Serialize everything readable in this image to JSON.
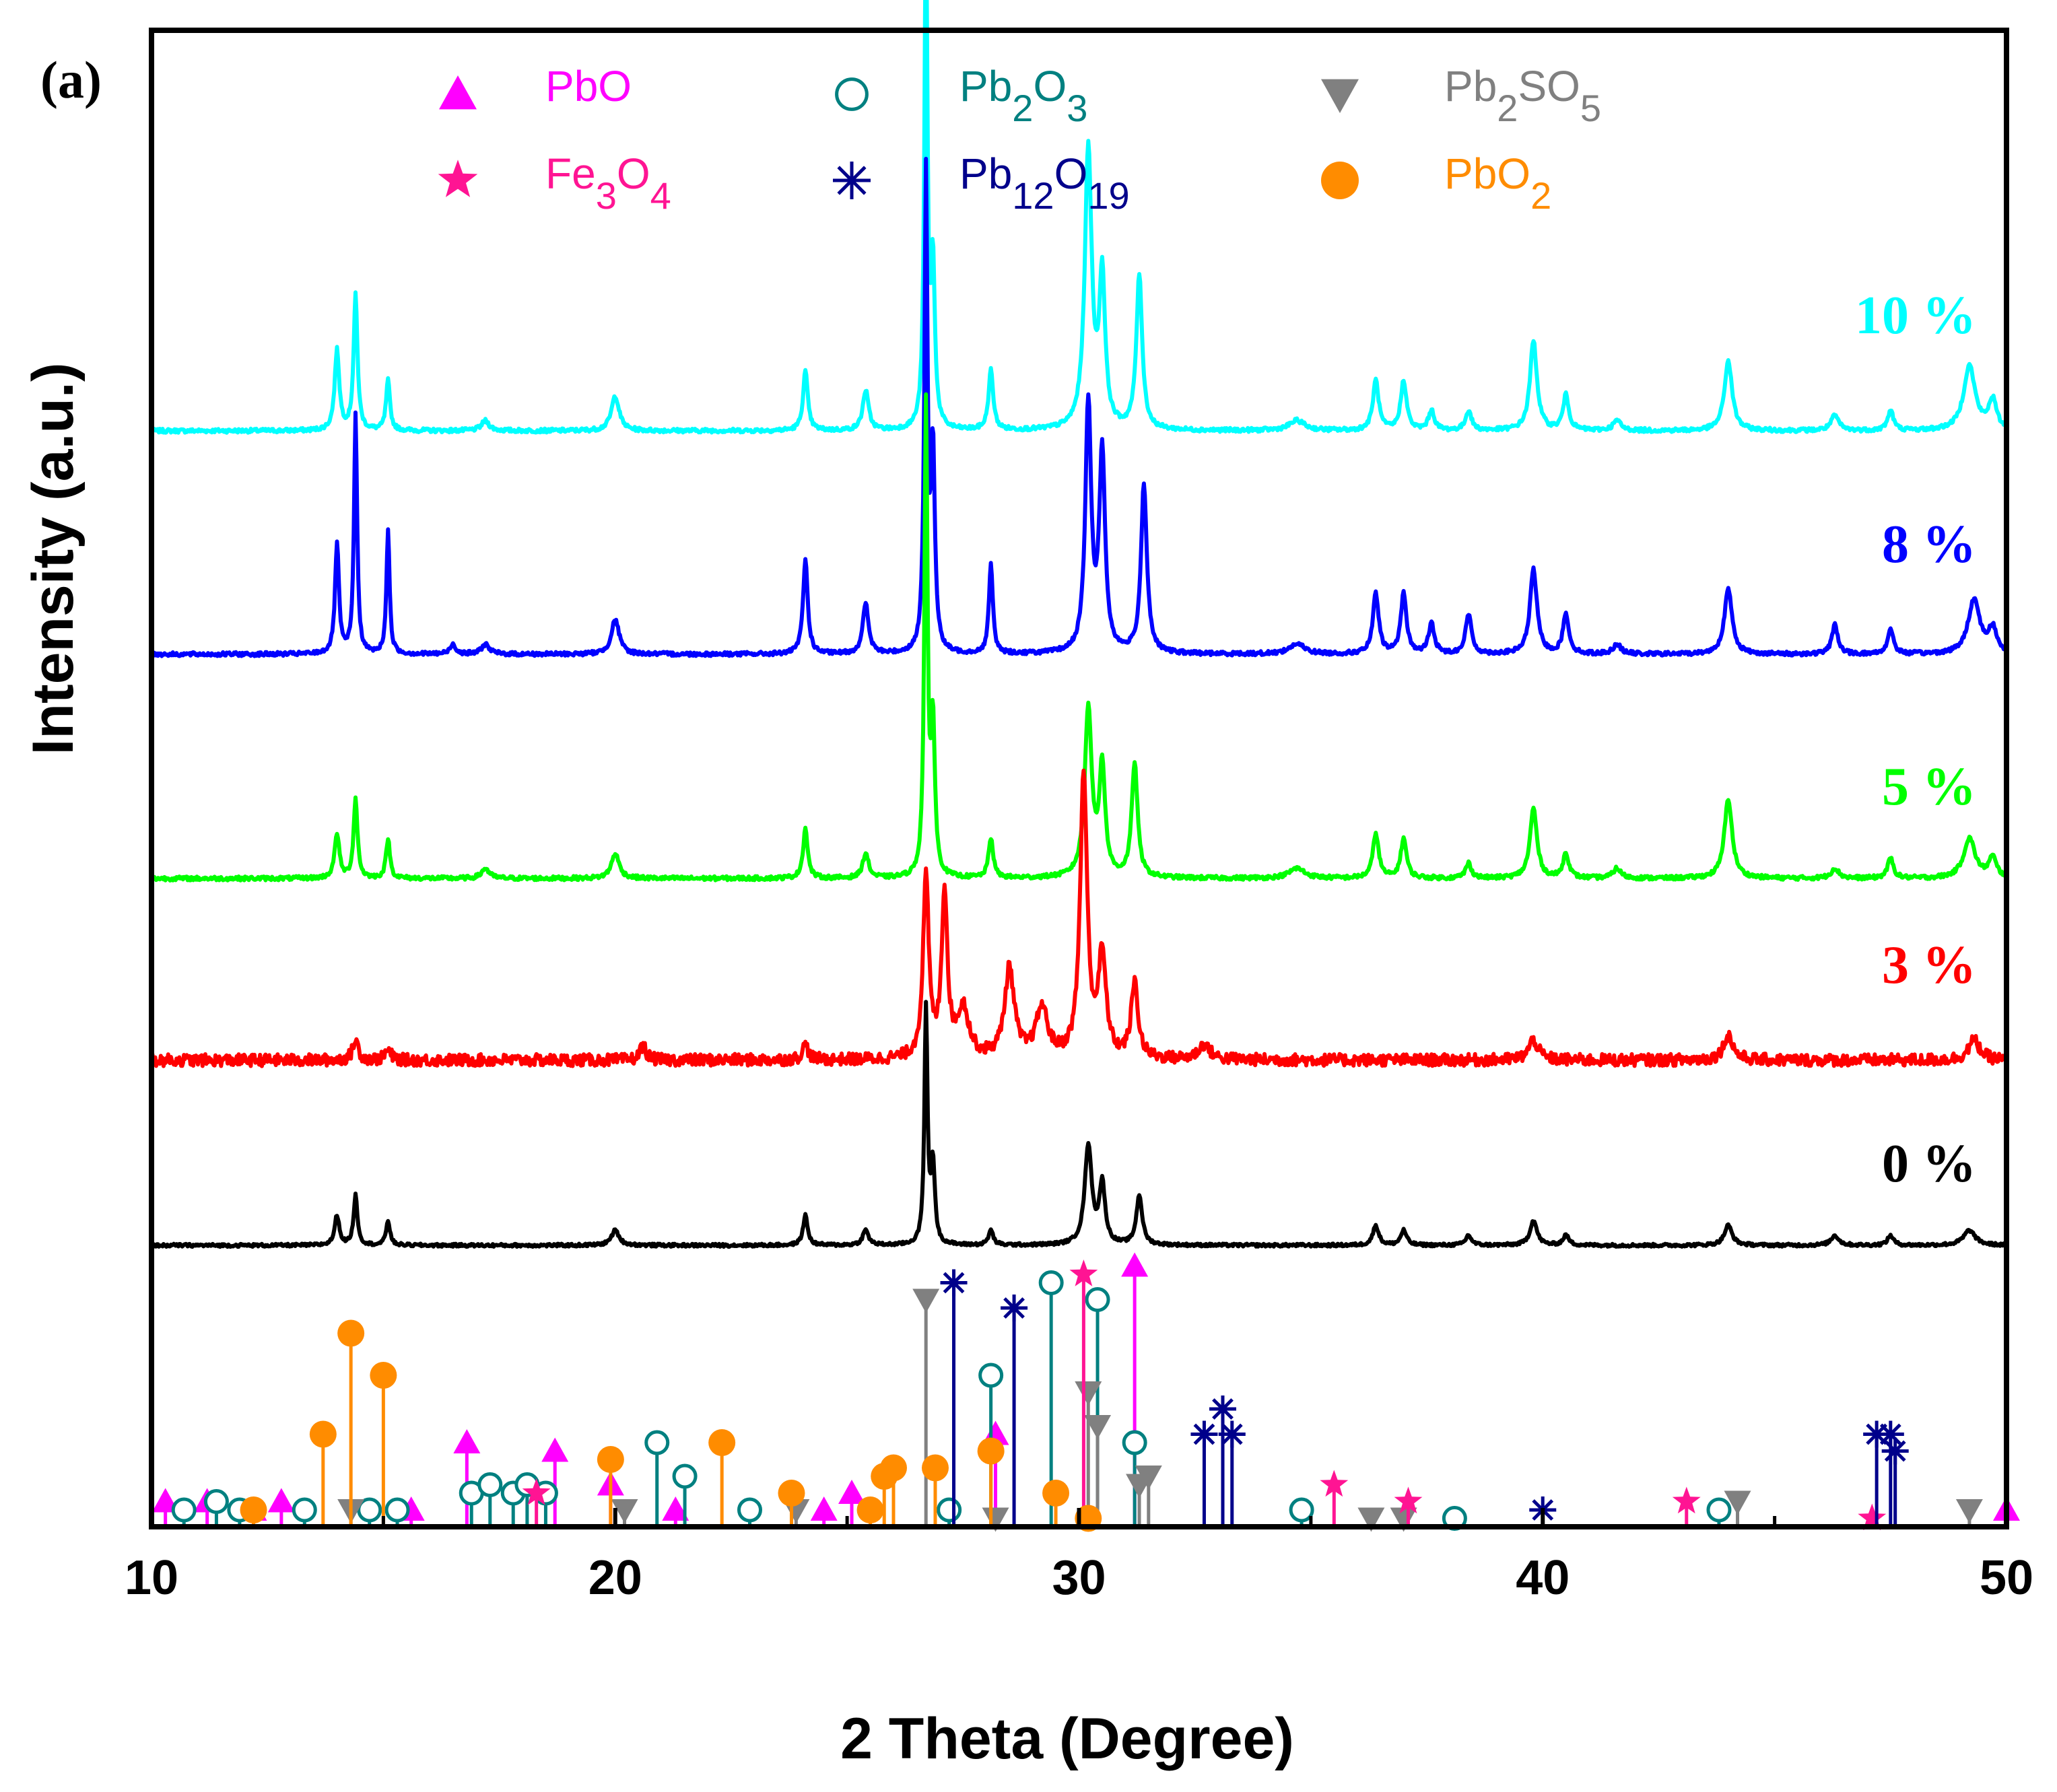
{
  "panel_label": "(a)",
  "chart_data": {
    "type": "line",
    "xlabel": "2 Theta (Degree)",
    "ylabel": "Intensity (a.u.)",
    "xlim": [
      10,
      50
    ],
    "xticks": [
      10,
      20,
      30,
      40,
      50
    ],
    "y_ticks_visible": false,
    "grid": false,
    "legend_position": "top",
    "legend": [
      {
        "key": "PbO",
        "base": "PbO",
        "sub": "",
        "marker": "triangle",
        "color": "#ff00ff"
      },
      {
        "key": "Pb2O3",
        "base": "Pb",
        "sub": "2",
        "base2": "O",
        "sub2": "3",
        "marker": "open-circle",
        "color": "#008080"
      },
      {
        "key": "Pb2SO5",
        "base": "Pb",
        "sub": "2",
        "base2": "SO",
        "sub2": "5",
        "marker": "inverted-triangle",
        "color": "#808080"
      },
      {
        "key": "Fe3O4",
        "base": "Fe",
        "sub": "3",
        "base2": "O",
        "sub2": "4",
        "marker": "star",
        "color": "#ff1493"
      },
      {
        "key": "Pb12O19",
        "base": "Pb",
        "sub": "12",
        "base2": "O",
        "sub2": "19",
        "marker": "asterisk",
        "color": "#00008b"
      },
      {
        "key": "PbO2",
        "base": "PbO",
        "sub": "2",
        "marker": "filled-circle",
        "color": "#ff8c00"
      }
    ],
    "series": [
      {
        "name": "10 %",
        "color": "#00ffff",
        "noise": 0.004,
        "peaks": [
          [
            14.0,
            0.16,
            0.12
          ],
          [
            14.4,
            0.27,
            0.1
          ],
          [
            15.1,
            0.1,
            0.1
          ],
          [
            17.2,
            0.02,
            0.2
          ],
          [
            20.0,
            0.07,
            0.2
          ],
          [
            24.1,
            0.12,
            0.12
          ],
          [
            25.4,
            0.08,
            0.15
          ],
          [
            26.7,
            1.0,
            0.08
          ],
          [
            26.85,
            0.32,
            0.1
          ],
          [
            28.1,
            0.12,
            0.12
          ],
          [
            30.2,
            0.56,
            0.18
          ],
          [
            30.5,
            0.3,
            0.15
          ],
          [
            31.3,
            0.31,
            0.15
          ],
          [
            34.7,
            0.02,
            0.4
          ],
          [
            36.4,
            0.1,
            0.15
          ],
          [
            37.0,
            0.1,
            0.15
          ],
          [
            37.6,
            0.04,
            0.15
          ],
          [
            38.4,
            0.04,
            0.15
          ],
          [
            39.8,
            0.18,
            0.18
          ],
          [
            40.5,
            0.07,
            0.15
          ],
          [
            41.6,
            0.02,
            0.2
          ],
          [
            44.0,
            0.14,
            0.2
          ],
          [
            46.3,
            0.03,
            0.2
          ],
          [
            47.5,
            0.04,
            0.15
          ],
          [
            49.2,
            0.13,
            0.3
          ],
          [
            49.7,
            0.06,
            0.2
          ]
        ]
      },
      {
        "name": "8 %",
        "color": "#0000ff",
        "noise": 0.004,
        "peaks": [
          [
            14.0,
            0.22,
            0.1
          ],
          [
            14.4,
            0.48,
            0.08
          ],
          [
            15.1,
            0.25,
            0.08
          ],
          [
            16.5,
            0.02,
            0.15
          ],
          [
            17.2,
            0.02,
            0.2
          ],
          [
            20.0,
            0.07,
            0.2
          ],
          [
            24.1,
            0.19,
            0.12
          ],
          [
            25.4,
            0.1,
            0.15
          ],
          [
            26.7,
            0.95,
            0.08
          ],
          [
            26.85,
            0.4,
            0.1
          ],
          [
            28.1,
            0.18,
            0.1
          ],
          [
            30.2,
            0.5,
            0.15
          ],
          [
            30.5,
            0.4,
            0.15
          ],
          [
            31.4,
            0.34,
            0.15
          ],
          [
            34.7,
            0.02,
            0.4
          ],
          [
            36.4,
            0.12,
            0.15
          ],
          [
            37.0,
            0.12,
            0.15
          ],
          [
            37.6,
            0.06,
            0.15
          ],
          [
            38.4,
            0.08,
            0.15
          ],
          [
            39.8,
            0.17,
            0.18
          ],
          [
            40.5,
            0.08,
            0.15
          ],
          [
            41.6,
            0.02,
            0.2
          ],
          [
            44.0,
            0.13,
            0.2
          ],
          [
            46.3,
            0.06,
            0.15
          ],
          [
            47.5,
            0.05,
            0.15
          ],
          [
            49.3,
            0.11,
            0.3
          ],
          [
            49.7,
            0.05,
            0.2
          ]
        ]
      },
      {
        "name": "5 %",
        "color": "#00ff00",
        "noise": 0.004,
        "peaks": [
          [
            14.0,
            0.09,
            0.12
          ],
          [
            14.4,
            0.16,
            0.1
          ],
          [
            15.1,
            0.08,
            0.1
          ],
          [
            17.2,
            0.02,
            0.2
          ],
          [
            20.0,
            0.05,
            0.2
          ],
          [
            24.1,
            0.1,
            0.12
          ],
          [
            25.4,
            0.05,
            0.15
          ],
          [
            26.7,
            0.94,
            0.08
          ],
          [
            26.85,
            0.3,
            0.1
          ],
          [
            28.1,
            0.08,
            0.12
          ],
          [
            30.2,
            0.34,
            0.18
          ],
          [
            30.5,
            0.22,
            0.15
          ],
          [
            31.2,
            0.23,
            0.15
          ],
          [
            34.7,
            0.02,
            0.4
          ],
          [
            36.4,
            0.09,
            0.15
          ],
          [
            37.0,
            0.08,
            0.15
          ],
          [
            38.4,
            0.03,
            0.15
          ],
          [
            39.8,
            0.14,
            0.18
          ],
          [
            40.5,
            0.05,
            0.15
          ],
          [
            41.6,
            0.02,
            0.2
          ],
          [
            44.0,
            0.16,
            0.2
          ],
          [
            46.3,
            0.02,
            0.2
          ],
          [
            47.5,
            0.04,
            0.15
          ],
          [
            49.2,
            0.08,
            0.3
          ],
          [
            49.7,
            0.04,
            0.2
          ]
        ]
      },
      {
        "name": "3 %",
        "color": "#ff0000",
        "noise": 0.012,
        "peaks": [
          [
            14.4,
            0.04,
            0.15
          ],
          [
            15.1,
            0.02,
            0.15
          ],
          [
            20.6,
            0.03,
            0.15
          ],
          [
            24.1,
            0.03,
            0.15
          ],
          [
            26.7,
            0.36,
            0.15
          ],
          [
            27.1,
            0.33,
            0.15
          ],
          [
            27.5,
            0.1,
            0.3
          ],
          [
            28.5,
            0.18,
            0.25
          ],
          [
            29.2,
            0.1,
            0.3
          ],
          [
            30.1,
            0.57,
            0.18
          ],
          [
            30.5,
            0.2,
            0.2
          ],
          [
            31.2,
            0.15,
            0.18
          ],
          [
            32.7,
            0.03,
            0.3
          ],
          [
            39.8,
            0.04,
            0.25
          ],
          [
            44.0,
            0.05,
            0.25
          ],
          [
            49.3,
            0.04,
            0.3
          ]
        ]
      },
      {
        "name": "0 %",
        "color": "#000000",
        "noise": 0.003,
        "peaks": [
          [
            14.0,
            0.06,
            0.12
          ],
          [
            14.4,
            0.1,
            0.1
          ],
          [
            15.1,
            0.05,
            0.1
          ],
          [
            20.0,
            0.03,
            0.2
          ],
          [
            24.1,
            0.06,
            0.12
          ],
          [
            25.4,
            0.03,
            0.15
          ],
          [
            26.7,
            0.47,
            0.08
          ],
          [
            26.85,
            0.16,
            0.1
          ],
          [
            28.1,
            0.03,
            0.12
          ],
          [
            30.2,
            0.2,
            0.18
          ],
          [
            30.5,
            0.12,
            0.15
          ],
          [
            31.3,
            0.1,
            0.15
          ],
          [
            36.4,
            0.04,
            0.15
          ],
          [
            37.0,
            0.03,
            0.15
          ],
          [
            38.4,
            0.02,
            0.15
          ],
          [
            39.8,
            0.05,
            0.18
          ],
          [
            40.5,
            0.02,
            0.15
          ],
          [
            44.0,
            0.04,
            0.2
          ],
          [
            46.3,
            0.02,
            0.2
          ],
          [
            47.5,
            0.02,
            0.15
          ],
          [
            49.2,
            0.03,
            0.3
          ]
        ]
      }
    ],
    "reference_patterns": {
      "PbO": [
        [
          10.3,
          0.03
        ],
        [
          11.2,
          0.03
        ],
        [
          12.2,
          0.02
        ],
        [
          12.8,
          0.03
        ],
        [
          15.6,
          0.02
        ],
        [
          16.8,
          0.1
        ],
        [
          18.7,
          0.09
        ],
        [
          19.9,
          0.05
        ],
        [
          21.3,
          0.02
        ],
        [
          24.5,
          0.02
        ],
        [
          25.1,
          0.04
        ],
        [
          28.2,
          0.11
        ],
        [
          31.2,
          0.31
        ],
        [
          50.0,
          0.02
        ]
      ],
      "Pb2O3": [
        [
          10.7,
          0.02
        ],
        [
          11.4,
          0.03
        ],
        [
          11.9,
          0.02
        ],
        [
          13.3,
          0.02
        ],
        [
          14.7,
          0.02
        ],
        [
          15.3,
          0.02
        ],
        [
          16.9,
          0.04
        ],
        [
          17.3,
          0.05
        ],
        [
          17.8,
          0.04
        ],
        [
          18.1,
          0.05
        ],
        [
          18.5,
          0.04
        ],
        [
          20.9,
          0.1
        ],
        [
          21.5,
          0.06
        ],
        [
          22.9,
          0.02
        ],
        [
          27.2,
          0.02
        ],
        [
          28.1,
          0.18
        ],
        [
          29.4,
          0.29
        ],
        [
          30.4,
          0.27
        ],
        [
          31.2,
          0.1
        ],
        [
          34.8,
          0.02
        ],
        [
          38.1,
          0.01
        ],
        [
          43.8,
          0.02
        ]
      ],
      "Pb2SO5": [
        [
          14.3,
          0.02
        ],
        [
          20.2,
          0.02
        ],
        [
          23.9,
          0.02
        ],
        [
          26.7,
          0.27
        ],
        [
          28.2,
          0.01
        ],
        [
          30.2,
          0.16
        ],
        [
          30.4,
          0.12
        ],
        [
          31.3,
          0.05
        ],
        [
          31.5,
          0.06
        ],
        [
          36.3,
          0.01
        ],
        [
          37.0,
          0.01
        ],
        [
          44.2,
          0.03
        ],
        [
          49.2,
          0.02
        ]
      ],
      "Fe3O4": [
        [
          18.3,
          0.04
        ],
        [
          30.1,
          0.3
        ],
        [
          35.5,
          0.05
        ],
        [
          37.1,
          0.03
        ],
        [
          43.1,
          0.03
        ],
        [
          47.1,
          0.01
        ]
      ],
      "Pb12O19": [
        [
          27.3,
          0.29
        ],
        [
          28.6,
          0.26
        ],
        [
          32.7,
          0.11
        ],
        [
          33.1,
          0.14
        ],
        [
          33.3,
          0.11
        ],
        [
          40.0,
          0.02
        ],
        [
          47.2,
          0.11
        ],
        [
          47.5,
          0.11
        ],
        [
          47.6,
          0.09
        ]
      ],
      "PbO2": [
        [
          12.2,
          0.02
        ],
        [
          13.7,
          0.11
        ],
        [
          14.3,
          0.23
        ],
        [
          15.0,
          0.18
        ],
        [
          19.9,
          0.08
        ],
        [
          22.3,
          0.1
        ],
        [
          23.8,
          0.04
        ],
        [
          25.5,
          0.02
        ],
        [
          25.8,
          0.06
        ],
        [
          26.0,
          0.07
        ],
        [
          26.9,
          0.07
        ],
        [
          28.1,
          0.09
        ],
        [
          29.5,
          0.04
        ],
        [
          30.2,
          0.01
        ]
      ]
    }
  }
}
